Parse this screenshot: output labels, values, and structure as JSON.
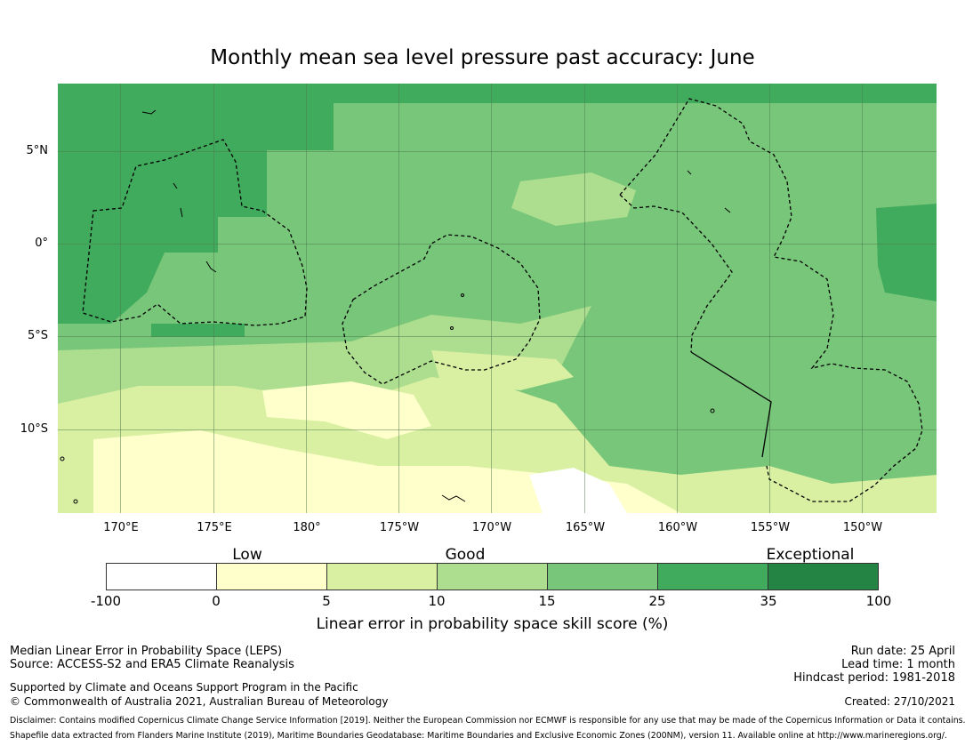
{
  "title": "Monthly mean sea level pressure past accuracy: June",
  "map": {
    "latitude_labels": [
      "5°N",
      "0°",
      "5°S",
      "10°S"
    ],
    "longitude_labels": [
      "170°E",
      "175°E",
      "180°",
      "175°W",
      "170°W",
      "165°W",
      "160°W",
      "155°W",
      "150°W"
    ],
    "colors": {
      "light_green_fill": "#78c679",
      "mid_green_fill": "#41ab5d",
      "pale_green_fill": "#addd8e",
      "pale_yellow_green_fill": "#d9f0a3",
      "cream_fill": "#ffffcc",
      "white_fill": "#ffffff",
      "eez_boundary_line": "#000000"
    }
  },
  "legend": {
    "categories": [
      "Low",
      "Good",
      "Exceptional"
    ],
    "ticks": [
      "-100",
      "0",
      "5",
      "10",
      "15",
      "25",
      "35",
      "100"
    ],
    "colors": [
      "#ffffff",
      "#ffffcc",
      "#d9f0a3",
      "#addd8e",
      "#78c679",
      "#41ab5d",
      "#238443"
    ],
    "label": "Linear error in probability space skill score (%)"
  },
  "footer": {
    "left_line1": "Median Linear Error in Probability Space (LEPS)",
    "left_line2": "Source: ACCESS-S2 and ERA5 Climate Reanalysis",
    "support_line1": "Supported by Climate and Oceans Support Program in the Pacific",
    "support_line2": "© Commonwealth of Australia 2021, Australian Bureau of Meteorology",
    "run_date": "Run date: 25 April",
    "lead_time": "Lead time: 1 month",
    "hindcast": "Hindcast period: 1981-2018",
    "created": "Created: 27/10/2021",
    "disclaimer": "Disclaimer: Contains modified Copernicus Climate Change Service Information [2019]. Neither the European Commission nor ECMWF is responsible for any use that may be made of the Copernicus Information or Data it contains.",
    "shapefile": "Shapefile data extracted from Flanders Marine Institute (2019), Maritime Boundaries Geodatabase: Maritime Boundaries and Exclusive Economic Zones (200NM), version 11. Available online at http://www.marineregions.org/."
  }
}
